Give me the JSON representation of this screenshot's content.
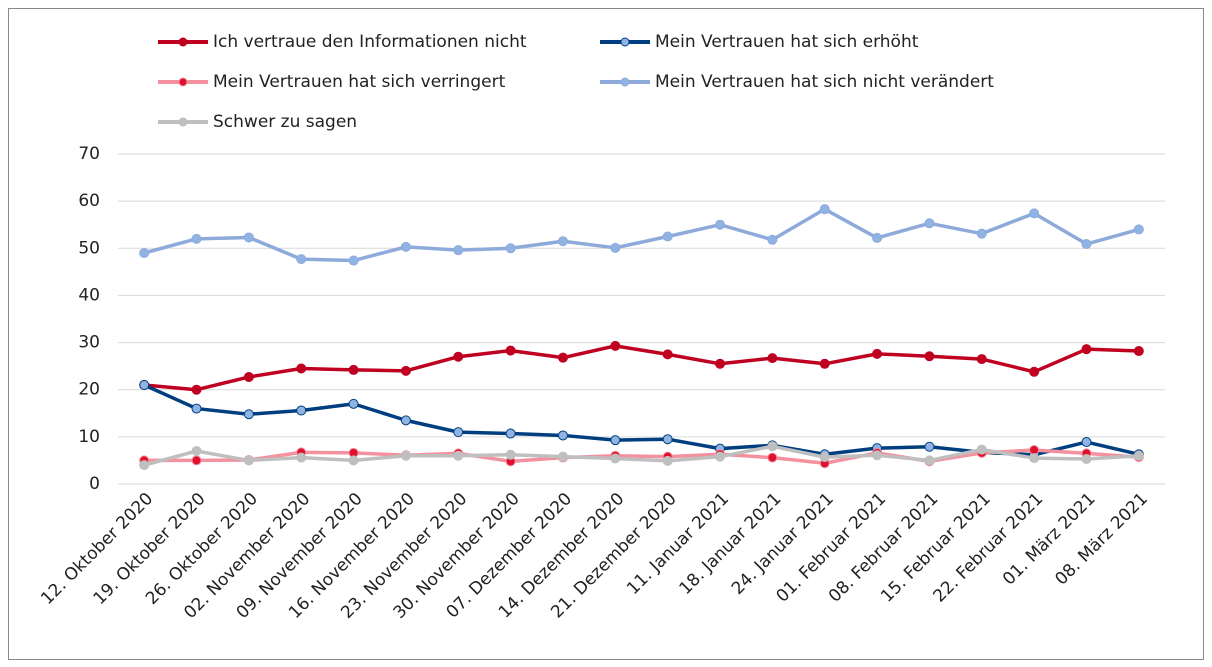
{
  "chart_data": {
    "type": "line",
    "categories": [
      "12. Oktober 2020",
      "19. Oktober 2020",
      "26. Oktober 2020",
      "02. November 2020",
      "09. November 2020",
      "16. November 2020",
      "23. November 2020",
      "30. November 2020",
      "07. Dezember 2020",
      "14. Dezember 2020",
      "21. Dezember 2020",
      "11. Januar 2021",
      "18. Januar 2021",
      "24. Januar 2021",
      "01. Februar 2021",
      "08. Februar 2021",
      "15. Februar 2021",
      "22. Februar 2021",
      "01. März 2021",
      "08. März 2021"
    ],
    "series": [
      {
        "name": "Ich vertraue den Informationen nicht",
        "color": "#c00020",
        "marker_color": "#c00020",
        "values": [
          21,
          20,
          22.7,
          24.5,
          24.2,
          24,
          27,
          28.3,
          26.8,
          29.3,
          27.5,
          25.5,
          26.7,
          25.5,
          27.6,
          27.1,
          26.5,
          23.8,
          28.6,
          28.2
        ]
      },
      {
        "name": "Mein Vertrauen hat sich erhöht",
        "color": "#003f7f",
        "marker_color": "#8fb4e3",
        "values": [
          21,
          16,
          14.8,
          15.6,
          17,
          13.5,
          11,
          10.7,
          10.3,
          9.3,
          9.5,
          7.5,
          8.2,
          6.3,
          7.6,
          7.9,
          6.7,
          6.2,
          8.9,
          6.3
        ]
      },
      {
        "name": "Mein Vertrauen hat sich verringert",
        "color": "#f4919f",
        "marker_color": "#e0102e",
        "values": [
          5,
          5,
          5.1,
          6.7,
          6.6,
          6.1,
          6.5,
          4.8,
          5.6,
          6,
          5.8,
          6.3,
          5.6,
          4.4,
          6.6,
          4.8,
          6.6,
          7.2,
          6.5,
          5.7
        ]
      },
      {
        "name": "Mein Vertrauen hat sich nicht verändert",
        "color": "#8eaadb",
        "marker_color": "#8fb4e3",
        "values": [
          49,
          52,
          52.3,
          47.7,
          47.4,
          50.3,
          49.6,
          50,
          51.5,
          50.1,
          52.5,
          55,
          51.8,
          58.3,
          52.2,
          55.3,
          53.1,
          57.4,
          50.9,
          54
        ]
      },
      {
        "name": "Schwer zu sagen",
        "color": "#bfbfbf",
        "marker_color": "#bfbfbf",
        "values": [
          4,
          7,
          5,
          5.6,
          5,
          6,
          6,
          6.2,
          5.8,
          5.4,
          4.9,
          5.8,
          8,
          5.7,
          6.1,
          5,
          7.3,
          5.5,
          5.3,
          6
        ]
      }
    ],
    "ylim": [
      0,
      70
    ],
    "yticks": [
      0,
      10,
      20,
      30,
      40,
      50,
      60,
      70
    ],
    "grid": true
  }
}
